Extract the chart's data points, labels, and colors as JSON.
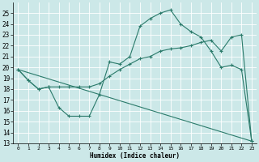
{
  "xlabel": "Humidex (Indice chaleur)",
  "bg_color": "#cce8e8",
  "grid_color": "#ffffff",
  "line_color": "#2a7a6a",
  "xlim": [
    -0.5,
    23.5
  ],
  "ylim": [
    13,
    26
  ],
  "yticks": [
    13,
    14,
    15,
    16,
    17,
    18,
    19,
    20,
    21,
    22,
    23,
    24,
    25
  ],
  "xticks": [
    0,
    1,
    2,
    3,
    4,
    5,
    6,
    7,
    8,
    9,
    10,
    11,
    12,
    13,
    14,
    15,
    16,
    17,
    18,
    19,
    20,
    21,
    22,
    23
  ],
  "curve1_x": [
    0,
    1,
    2,
    3,
    4,
    5,
    6,
    7,
    8,
    9,
    10,
    11,
    12,
    13,
    14,
    15,
    16,
    17,
    18,
    19,
    20,
    21,
    22,
    23
  ],
  "curve1_y": [
    19.8,
    18.8,
    18.0,
    18.2,
    16.3,
    15.5,
    15.5,
    15.5,
    17.5,
    20.5,
    20.3,
    21.0,
    23.8,
    24.5,
    25.0,
    25.3,
    24.0,
    23.3,
    22.8,
    21.5,
    20.0,
    20.2,
    19.8,
    13.2
  ],
  "curve2_x": [
    0,
    1,
    2,
    3,
    4,
    5,
    6,
    7,
    8,
    9,
    10,
    11,
    12,
    13,
    14,
    15,
    16,
    17,
    18,
    19,
    20,
    21,
    22,
    23
  ],
  "curve2_y": [
    19.8,
    18.8,
    18.0,
    18.2,
    18.2,
    18.2,
    18.2,
    18.2,
    18.5,
    19.2,
    19.8,
    20.3,
    20.8,
    21.0,
    21.5,
    21.7,
    21.8,
    22.0,
    22.3,
    22.5,
    21.5,
    22.8,
    23.0,
    13.2
  ],
  "curve3_x": [
    0,
    23
  ],
  "curve3_y": [
    19.8,
    13.2
  ]
}
